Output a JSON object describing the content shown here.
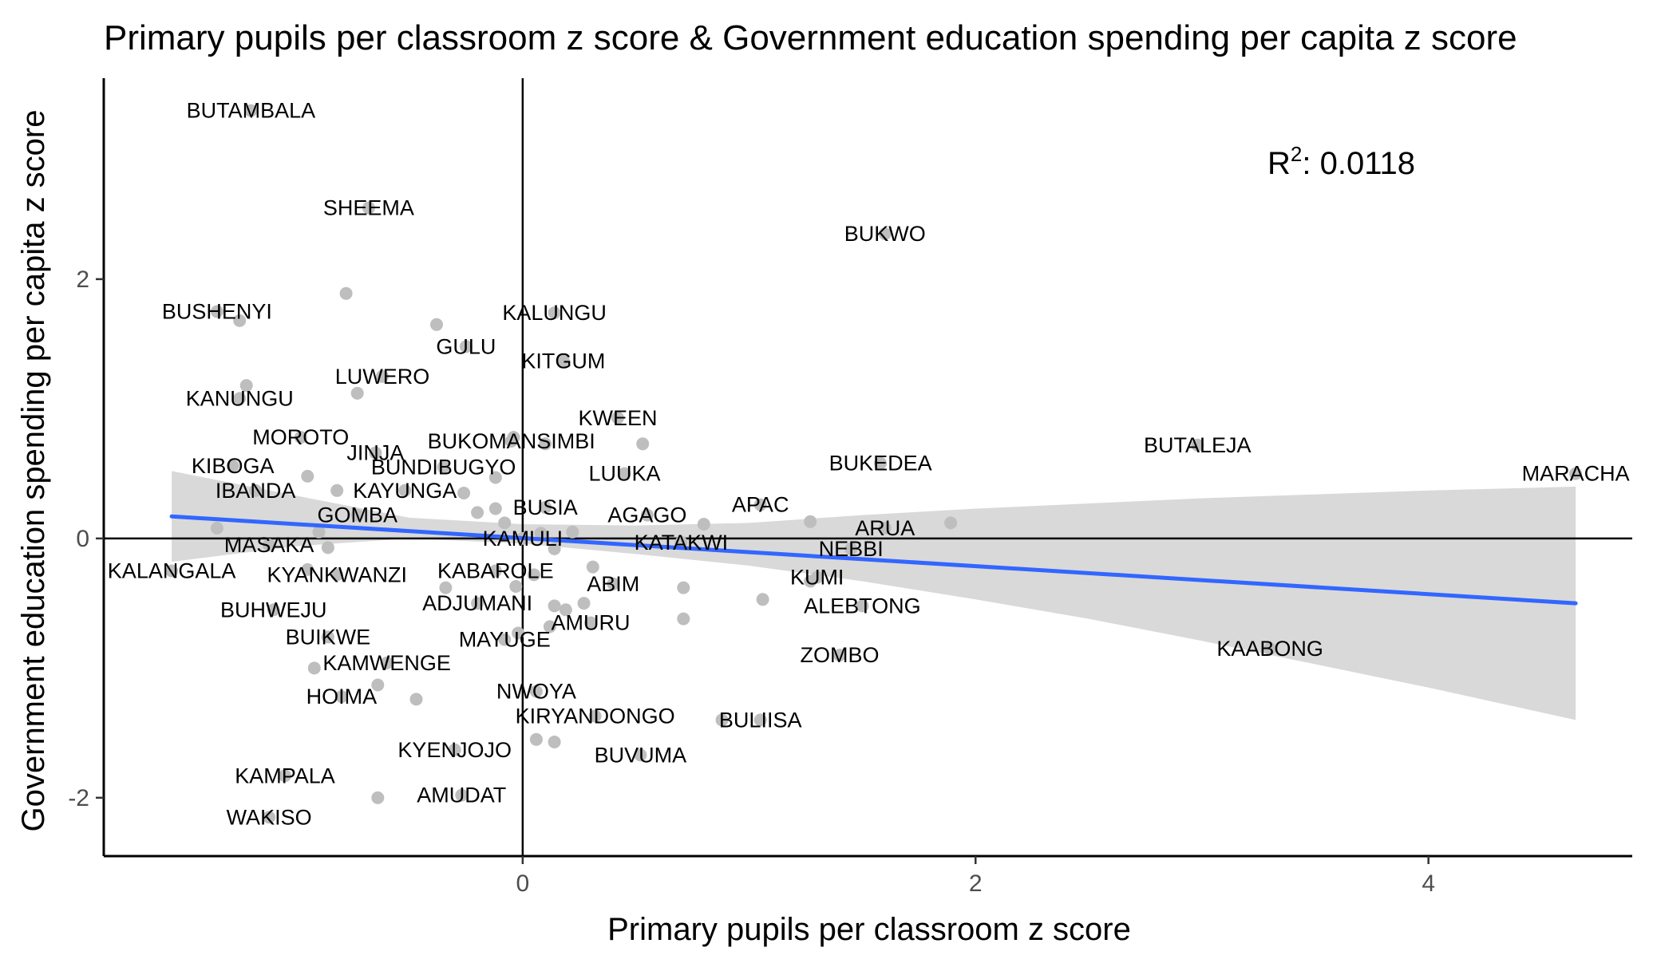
{
  "chart_data": {
    "type": "scatter",
    "title": "Primary pupils per classroom z score & Government education spending per capita z score",
    "xlabel": "Primary pupils per classroom z score",
    "ylabel": "Government education spending per capita z score",
    "xlim": [
      -1.85,
      4.9
    ],
    "ylim": [
      -2.45,
      3.55
    ],
    "x_ticks": [
      0,
      2,
      4
    ],
    "y_ticks": [
      -2,
      0,
      2
    ],
    "grid": false,
    "reference_lines": {
      "x": 0,
      "y": 0
    },
    "annotation": {
      "r_symbol": "R",
      "r_exponent": "2",
      "text": ": 0.0118"
    },
    "colors": {
      "points": "#bebebe",
      "trend": "#3366ff",
      "band": "#d9d9d9",
      "axis": "#000000"
    },
    "trend": {
      "x": [
        -1.55,
        4.65
      ],
      "y": [
        0.17,
        -0.5
      ]
    },
    "confidence_band": {
      "x": [
        -1.55,
        -1.0,
        -0.5,
        0.0,
        0.5,
        1.0,
        1.5,
        2.0,
        2.5,
        3.0,
        3.5,
        4.0,
        4.65
      ],
      "lower": [
        -0.18,
        -0.06,
        0.0,
        -0.04,
        -0.12,
        -0.21,
        -0.33,
        -0.47,
        -0.62,
        -0.79,
        -0.97,
        -1.15,
        -1.4
      ],
      "upper": [
        0.52,
        0.33,
        0.16,
        0.11,
        0.1,
        0.12,
        0.18,
        0.23,
        0.27,
        0.31,
        0.34,
        0.37,
        0.4
      ]
    },
    "points": [
      {
        "label": "BUTAMBALA",
        "x": -1.2,
        "y": 3.3
      },
      {
        "label": "SHEEMA",
        "x": -0.68,
        "y": 2.55
      },
      {
        "label": "BUKWO",
        "x": 1.6,
        "y": 2.35
      },
      {
        "label": "BUSHENYI",
        "x": -1.35,
        "y": 1.75
      },
      {
        "label": "",
        "x": -1.25,
        "y": 1.68
      },
      {
        "label": "",
        "x": -0.78,
        "y": 1.89
      },
      {
        "label": "KALUNGU",
        "x": 0.14,
        "y": 1.74
      },
      {
        "label": "",
        "x": -0.38,
        "y": 1.65
      },
      {
        "label": "GULU",
        "x": -0.25,
        "y": 1.48
      },
      {
        "label": "KITGUM",
        "x": 0.18,
        "y": 1.37
      },
      {
        "label": "LUWERO",
        "x": -0.62,
        "y": 1.25
      },
      {
        "label": "",
        "x": -0.73,
        "y": 1.12
      },
      {
        "label": "KANUNGU",
        "x": -1.25,
        "y": 1.08
      },
      {
        "label": "",
        "x": -1.22,
        "y": 1.18
      },
      {
        "label": "KWEEN",
        "x": 0.42,
        "y": 0.93
      },
      {
        "label": "MOROTO",
        "x": -0.98,
        "y": 0.78
      },
      {
        "label": "JINJA",
        "x": -0.65,
        "y": 0.66
      },
      {
        "label": "BUKOMANSIMBI",
        "x": -0.05,
        "y": 0.75
      },
      {
        "label": "",
        "x": -0.04,
        "y": 0.78
      },
      {
        "label": "",
        "x": 0.1,
        "y": 0.73
      },
      {
        "label": "",
        "x": 0.53,
        "y": 0.73
      },
      {
        "label": "KIBOGA",
        "x": -1.28,
        "y": 0.56
      },
      {
        "label": "",
        "x": -0.95,
        "y": 0.48
      },
      {
        "label": "BUNDIBUGYO",
        "x": -0.35,
        "y": 0.55
      },
      {
        "label": "",
        "x": -0.12,
        "y": 0.47
      },
      {
        "label": "LUUKA",
        "x": 0.45,
        "y": 0.5
      },
      {
        "label": "BUKEDEA",
        "x": 1.58,
        "y": 0.58
      },
      {
        "label": "BUTALEJA",
        "x": 2.98,
        "y": 0.72
      },
      {
        "label": "MARACHA",
        "x": 4.65,
        "y": 0.5
      },
      {
        "label": "IBANDA",
        "x": -1.18,
        "y": 0.37
      },
      {
        "label": "KAYUNGA",
        "x": -0.52,
        "y": 0.37
      },
      {
        "label": "",
        "x": -0.82,
        "y": 0.37
      },
      {
        "label": "",
        "x": -0.26,
        "y": 0.35
      },
      {
        "label": "APAC",
        "x": 1.05,
        "y": 0.26
      },
      {
        "label": "BUSIA",
        "x": 0.1,
        "y": 0.24
      },
      {
        "label": "AGAGO",
        "x": 0.55,
        "y": 0.18
      },
      {
        "label": "",
        "x": 0.8,
        "y": 0.11
      },
      {
        "label": "",
        "x": 1.27,
        "y": 0.13
      },
      {
        "label": "ARUA",
        "x": 1.6,
        "y": 0.08
      },
      {
        "label": "",
        "x": 1.89,
        "y": 0.12
      },
      {
        "label": "GOMBA",
        "x": -0.73,
        "y": 0.18
      },
      {
        "label": "",
        "x": -0.2,
        "y": 0.2
      },
      {
        "label": "",
        "x": -0.12,
        "y": 0.23
      },
      {
        "label": "",
        "x": -0.08,
        "y": 0.12
      },
      {
        "label": "KAMULI",
        "x": 0.0,
        "y": 0.0
      },
      {
        "label": "",
        "x": 0.08,
        "y": 0.04
      },
      {
        "label": "",
        "x": 0.22,
        "y": 0.05
      },
      {
        "label": "",
        "x": 0.14,
        "y": -0.08
      },
      {
        "label": "KATAKWI",
        "x": 0.7,
        "y": -0.03
      },
      {
        "label": "NEBBI",
        "x": 1.45,
        "y": -0.08
      },
      {
        "label": "MASAKA",
        "x": -1.12,
        "y": -0.05
      },
      {
        "label": "",
        "x": -0.86,
        "y": -0.07
      },
      {
        "label": "",
        "x": -0.9,
        "y": 0.05
      },
      {
        "label": "",
        "x": -1.35,
        "y": 0.08
      },
      {
        "label": "KALANGALA",
        "x": -1.55,
        "y": -0.25
      },
      {
        "label": "KYANKWANZI",
        "x": -0.82,
        "y": -0.28
      },
      {
        "label": "",
        "x": -0.95,
        "y": -0.24
      },
      {
        "label": "KABAROLE",
        "x": -0.12,
        "y": -0.25
      },
      {
        "label": "",
        "x": 0.05,
        "y": -0.28
      },
      {
        "label": "",
        "x": 0.31,
        "y": -0.22
      },
      {
        "label": "ABIM",
        "x": 0.4,
        "y": -0.35
      },
      {
        "label": "KUMI",
        "x": 1.3,
        "y": -0.3
      },
      {
        "label": "",
        "x": 1.27,
        "y": -0.33
      },
      {
        "label": "",
        "x": -0.34,
        "y": -0.38
      },
      {
        "label": "",
        "x": -0.03,
        "y": -0.37
      },
      {
        "label": "",
        "x": 0.71,
        "y": -0.38
      },
      {
        "label": "ADJUMANI",
        "x": -0.2,
        "y": -0.5
      },
      {
        "label": "",
        "x": 0.14,
        "y": -0.52
      },
      {
        "label": "",
        "x": 0.19,
        "y": -0.55
      },
      {
        "label": "",
        "x": 0.27,
        "y": -0.5
      },
      {
        "label": "",
        "x": 1.06,
        "y": -0.47
      },
      {
        "label": "ALEBTONG",
        "x": 1.5,
        "y": -0.52
      },
      {
        "label": "BUHWEJU",
        "x": -1.1,
        "y": -0.55
      },
      {
        "label": "",
        "x": 0.71,
        "y": -0.62
      },
      {
        "label": "AMURU",
        "x": 0.3,
        "y": -0.65
      },
      {
        "label": "MAYUGE",
        "x": -0.08,
        "y": -0.78
      },
      {
        "label": "",
        "x": -0.02,
        "y": -0.73
      },
      {
        "label": "",
        "x": 0.12,
        "y": -0.68
      },
      {
        "label": "BUIKWE",
        "x": -0.86,
        "y": -0.76
      },
      {
        "label": "ZOMBO",
        "x": 1.4,
        "y": -0.9
      },
      {
        "label": "KAABONG",
        "x": 3.3,
        "y": -0.85
      },
      {
        "label": "KAMWENGE",
        "x": -0.6,
        "y": -0.96
      },
      {
        "label": "",
        "x": -0.92,
        "y": -1.0
      },
      {
        "label": "",
        "x": -0.64,
        "y": -1.13
      },
      {
        "label": "HOIMA",
        "x": -0.8,
        "y": -1.22
      },
      {
        "label": "",
        "x": -0.47,
        "y": -1.24
      },
      {
        "label": "NWOYA",
        "x": 0.06,
        "y": -1.18
      },
      {
        "label": "KIRYANDONGO",
        "x": 0.32,
        "y": -1.37
      },
      {
        "label": "",
        "x": 0.88,
        "y": -1.4
      },
      {
        "label": "BULIISA",
        "x": 1.05,
        "y": -1.4
      },
      {
        "label": "KYENJOJO",
        "x": -0.3,
        "y": -1.63
      },
      {
        "label": "",
        "x": 0.06,
        "y": -1.55
      },
      {
        "label": "",
        "x": 0.14,
        "y": -1.57
      },
      {
        "label": "BUVUMA",
        "x": 0.52,
        "y": -1.67
      },
      {
        "label": "KAMPALA",
        "x": -1.05,
        "y": -1.83
      },
      {
        "label": "AMUDAT",
        "x": -0.27,
        "y": -1.98
      },
      {
        "label": "",
        "x": -0.64,
        "y": -2.0
      },
      {
        "label": "WAKISO",
        "x": -1.12,
        "y": -2.15
      }
    ]
  }
}
